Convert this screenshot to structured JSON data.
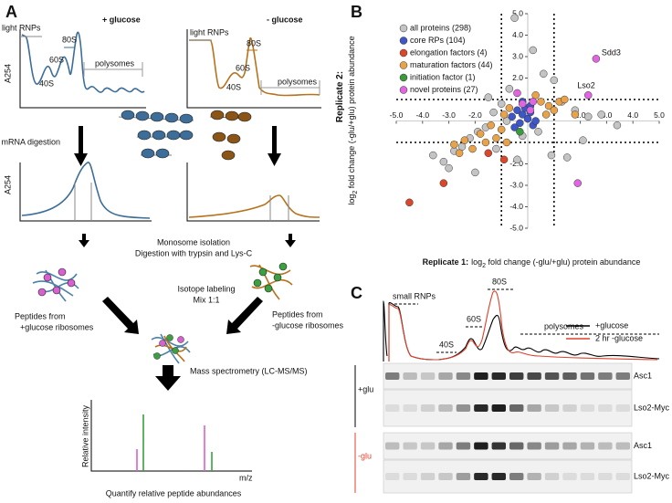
{
  "panel_labels": {
    "a": "A",
    "b": "B",
    "c": "C"
  },
  "panel_a": {
    "plus_glucose": "+ glucose",
    "minus_glucose": "- glucose",
    "left_profile": {
      "light_rnps": "light RNPs",
      "s80": "80S",
      "s60": "60S",
      "s40": "40S",
      "polysomes": "polysomes",
      "axis": "A254"
    },
    "right_profile": {
      "light_rnps": "light RNPs",
      "s80": "80S",
      "s60": "60S",
      "s40": "40S",
      "polysomes": "polysomes"
    },
    "mrna_digestion": "mRNA digestion",
    "digest_axis": "A254",
    "monosome_isolation": "Monosome isolation",
    "digestion": "Digestion with trypsin and Lys-C",
    "isotope_labeling": "Isotope labeling",
    "mix": "Mix 1:1",
    "left_peptides": [
      "Peptides from",
      "+glucose ribosomes"
    ],
    "right_peptides": [
      "Peptides from",
      "-glucose ribosomes"
    ],
    "mass_spec": "Mass spectrometry (LC-MS/MS)",
    "ms_y": "Relative intensity",
    "ms_x": "m/z",
    "quantify": "Quantify relative peptide abundances"
  },
  "chart_data": {
    "type": "scatter",
    "x_label": {
      "bold": "Replicate 1:",
      "pre": "log",
      "sub": "2",
      "post": " fold change (-glu/+glu) protein abundance"
    },
    "y_label": {
      "bold": "Replicate 2:",
      "pre": "log",
      "sub": "2",
      "post": " fold change (-glu/+glu) protein abundance"
    },
    "xlim": [
      -5,
      5
    ],
    "ylim": [
      -5,
      5
    ],
    "xticks": [
      {
        "value": -5,
        "label": "-5.0"
      },
      {
        "value": -4,
        "label": "-4.0"
      },
      {
        "value": -3,
        "label": "-3.0"
      },
      {
        "value": -2,
        "label": "-2.0"
      },
      {
        "value": 2,
        "label": "2.0"
      },
      {
        "value": 3,
        "label": "3.0"
      },
      {
        "value": 4,
        "label": "4.0"
      },
      {
        "value": 5,
        "label": "5.0"
      }
    ],
    "yticks": [
      {
        "value": 5,
        "label": "5.0"
      },
      {
        "value": 4,
        "label": "4.0"
      },
      {
        "value": 3,
        "label": "3.0"
      },
      {
        "value": 2,
        "label": "2.0"
      },
      {
        "value": -2,
        "label": "-2.0"
      },
      {
        "value": -3,
        "label": "-3.0"
      },
      {
        "value": -4,
        "label": "-4.0"
      },
      {
        "value": -5,
        "label": "-5.0"
      }
    ],
    "threshold_lines": [
      -1,
      1
    ],
    "legend": "upper left",
    "series": [
      {
        "name": "all proteins (298)",
        "color": "#c4c4c4",
        "x": [
          -3.6,
          -3.2,
          -2.8,
          -2.5,
          -2.2,
          -1.9,
          -1.6,
          -1.3,
          -1.0,
          -0.7,
          -0.5,
          0.2,
          0.6,
          1.0,
          1.3,
          1.8,
          2.3,
          2.8,
          3.4,
          -0.2,
          -1.2,
          -2.0,
          -0.4,
          0.9,
          2.1,
          -3.0,
          -1.5,
          -0.8,
          0.4,
          1.5
        ],
        "y": [
          -1.6,
          -1.9,
          -1.4,
          -1.2,
          -0.8,
          -0.5,
          -0.3,
          0.4,
          0.8,
          1.5,
          4.8,
          3.3,
          2.2,
          1.9,
          0.9,
          0.5,
          0.2,
          0.3,
          -0.2,
          -0.7,
          -1.3,
          -2.4,
          -1.8,
          -1.6,
          -0.9,
          -2.2,
          1.1,
          0.0,
          -0.5,
          -1.7
        ]
      },
      {
        "name": "core RPs (104)",
        "color": "#3e56c8",
        "x": [
          -0.6,
          -0.4,
          -0.3,
          -0.2,
          -0.1,
          0.0,
          0.1,
          0.2,
          -0.5,
          0.3,
          -0.2,
          0.1
        ],
        "y": [
          0.2,
          0.5,
          -0.1,
          0.3,
          0.6,
          0.1,
          0.4,
          -0.2,
          -0.3,
          0.0,
          0.9,
          0.7
        ]
      },
      {
        "name": "elongation factors (4)",
        "color": "#d9482b",
        "x": [
          -4.5,
          -3.2,
          -0.9,
          -1.5
        ],
        "y": [
          -3.8,
          -2.9,
          -1.8,
          -1.5
        ]
      },
      {
        "name": "maturation factors (44)",
        "color": "#e8a24a",
        "x": [
          -2.8,
          -2.4,
          -2.1,
          -1.8,
          -1.6,
          -1.2,
          -0.9,
          -0.7,
          0.5,
          0.8,
          1.0,
          1.2,
          1.4,
          0.7,
          -1.0,
          -2.6,
          -1.4,
          0.3,
          1.8,
          -0.8
        ],
        "y": [
          -1.1,
          -0.9,
          -1.3,
          -0.6,
          -1.0,
          -0.8,
          0.3,
          0.6,
          0.9,
          0.7,
          0.5,
          0.9,
          1.0,
          0.3,
          -0.4,
          -1.5,
          -0.2,
          1.2,
          0.3,
          -1.0
        ]
      },
      {
        "name": "initiation factor (1)",
        "color": "#3b9a3b",
        "x": [
          -0.3
        ],
        "y": [
          -0.5
        ]
      },
      {
        "name": "novel proteins (27)",
        "color": "#e065e0",
        "x": [
          2.6,
          2.3,
          -0.2,
          0.1,
          -0.4,
          0.2,
          1.9
        ],
        "y": [
          2.9,
          1.2,
          0.8,
          0.5,
          1.3,
          0.9,
          -2.9
        ]
      }
    ],
    "annotations": [
      {
        "text": "Sdd3",
        "x": 2.6,
        "y": 2.9
      },
      {
        "text": "Lso2",
        "x": 2.3,
        "y": 1.2
      }
    ]
  },
  "panel_c": {
    "small_rnps": "small RNPs",
    "s80": "80S",
    "s60": "60S",
    "s40": "40S",
    "polysomes": "polysomes",
    "legend": [
      {
        "name": "+glucose",
        "color": "#000000"
      },
      {
        "name": "2 hr -glucose",
        "color": "#e0402a"
      }
    ],
    "plus_glu": "+glu",
    "minus_glu": "-glu",
    "blot_rows": [
      "Asc1",
      "Lso2-Myc",
      "Asc1",
      "Lso2-Myc"
    ]
  }
}
